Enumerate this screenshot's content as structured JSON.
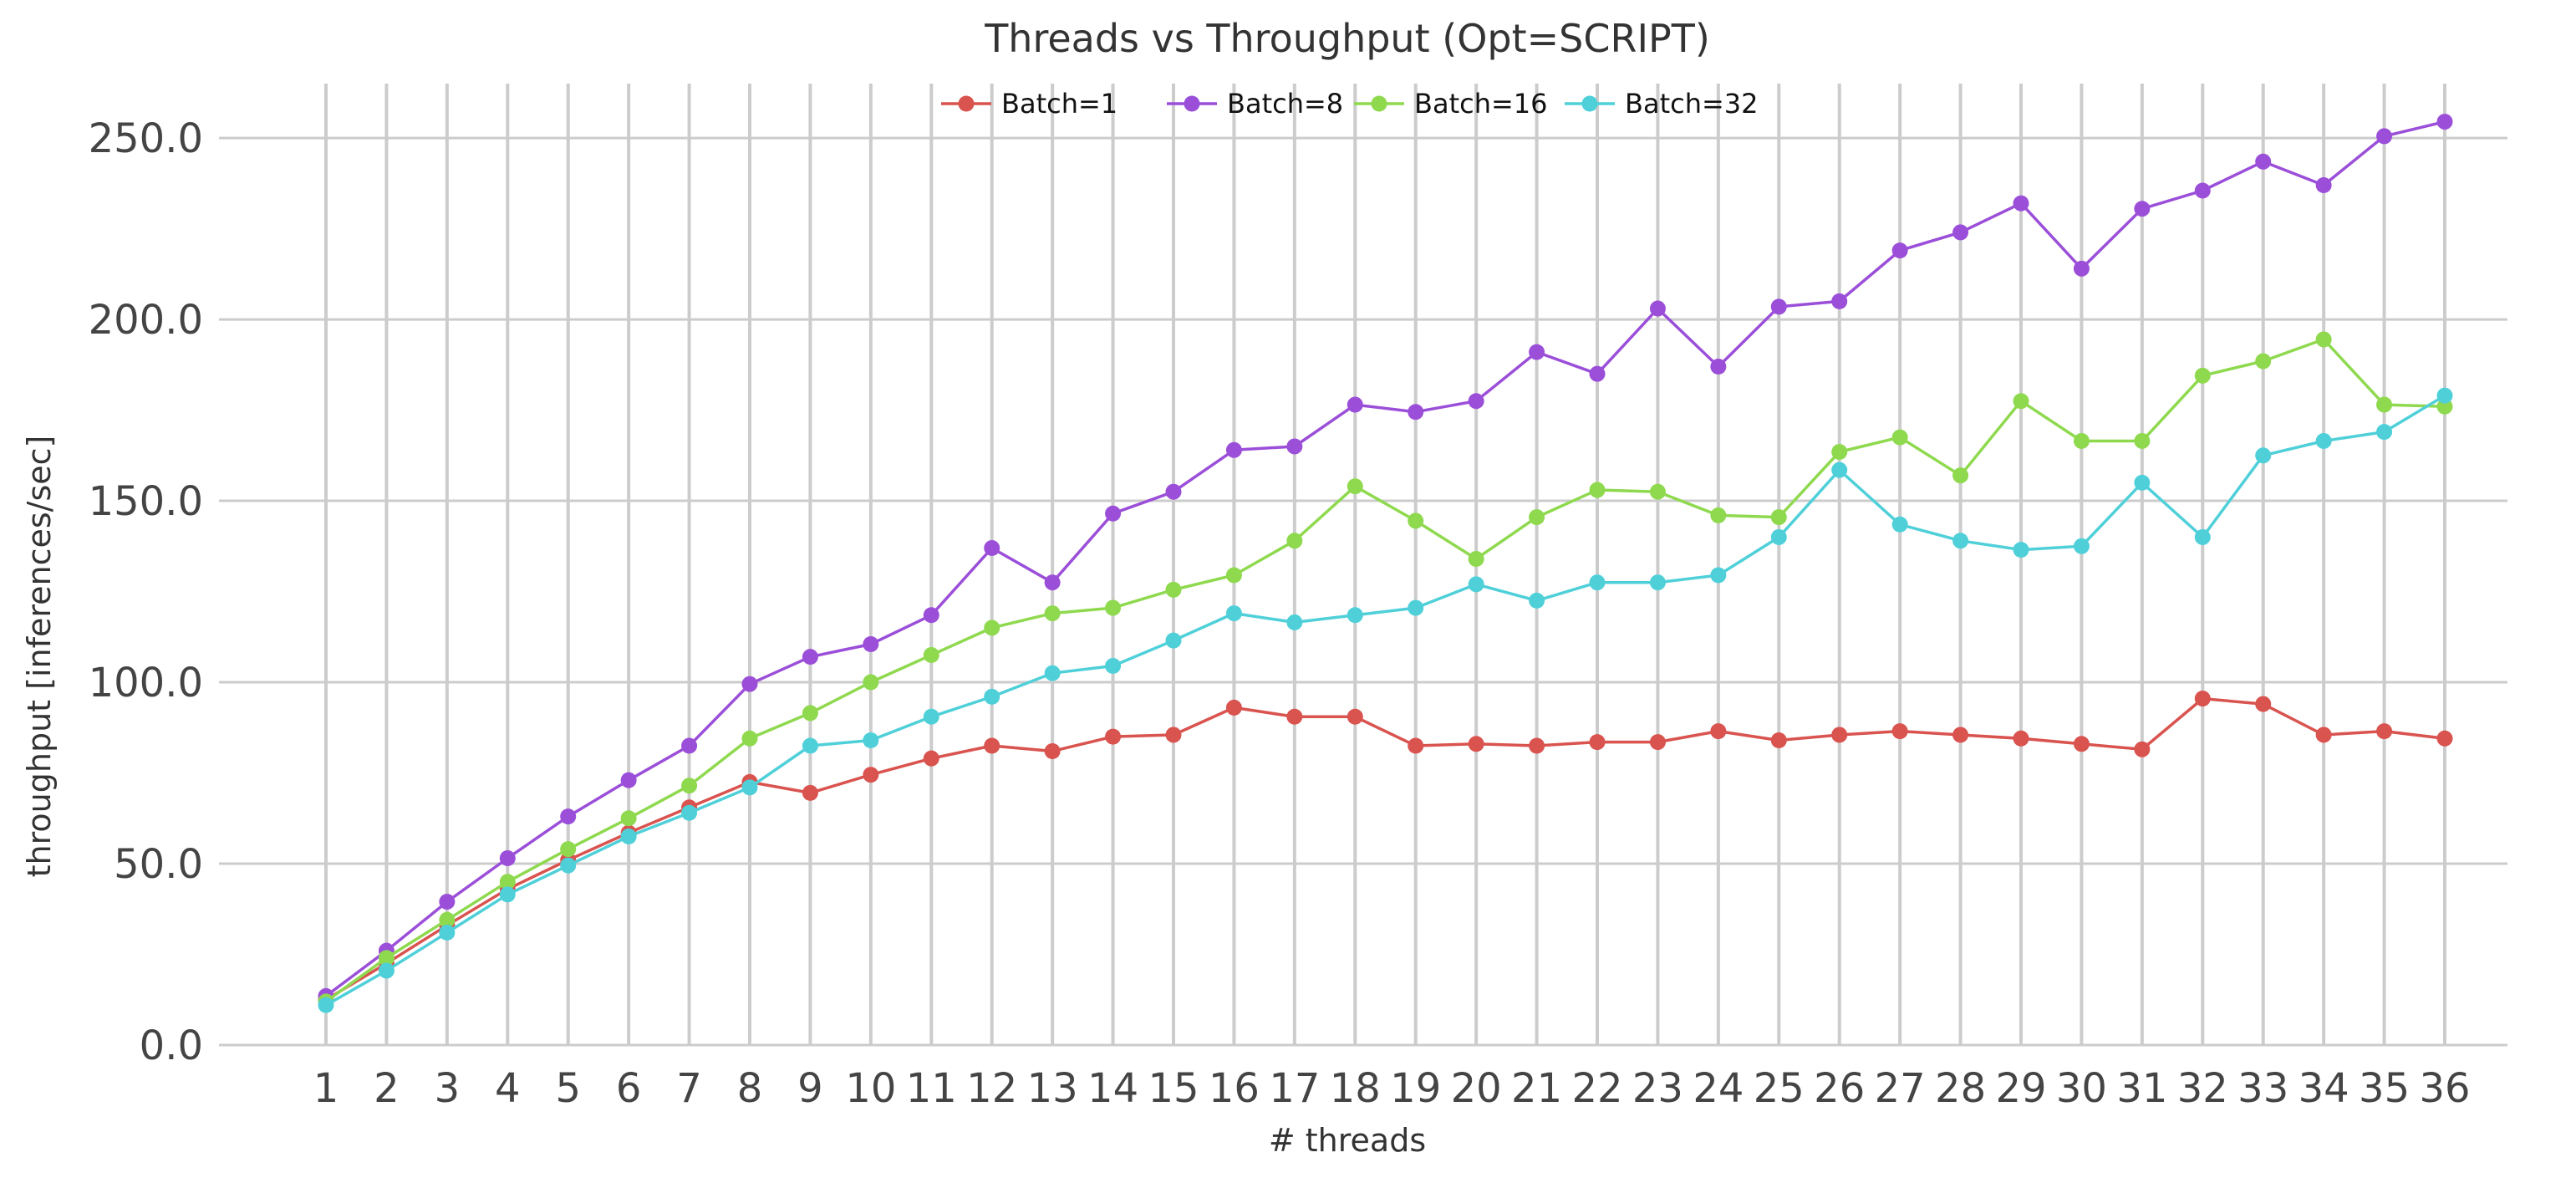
{
  "chart_data": {
    "type": "line",
    "title": "Threads vs Throughput (Opt=SCRIPT)",
    "xlabel": "# threads",
    "ylabel": "throughput [inferences/sec]",
    "x": [
      1,
      2,
      3,
      4,
      5,
      6,
      7,
      8,
      9,
      10,
      11,
      12,
      13,
      14,
      15,
      16,
      17,
      18,
      19,
      20,
      21,
      22,
      23,
      24,
      25,
      26,
      27,
      28,
      29,
      30,
      31,
      32,
      33,
      34,
      35,
      36
    ],
    "x_tick_labels": [
      "1",
      "2",
      "3",
      "4",
      "5",
      "6",
      "7",
      "8",
      "9",
      "10",
      "11",
      "12",
      "13",
      "14",
      "15",
      "16",
      "17",
      "18",
      "19",
      "20",
      "21",
      "22",
      "23",
      "24",
      "25",
      "26",
      "27",
      "28",
      "29",
      "30",
      "31",
      "32",
      "33",
      "34",
      "35",
      "36"
    ],
    "y_ticks": [
      0,
      50,
      100,
      150,
      200,
      250
    ],
    "y_tick_labels": [
      "0.0",
      "50.0",
      "100.0",
      "150.0",
      "200.0",
      "250.0"
    ],
    "ylim": [
      0,
      265
    ],
    "grid": true,
    "legend_position": "top-center",
    "series": [
      {
        "name": "Batch=1",
        "color": "#d9534f",
        "values": [
          12.5,
          22.5,
          33.0,
          43.0,
          51.0,
          58.5,
          65.5,
          72.5,
          69.5,
          74.5,
          79.0,
          82.5,
          81.0,
          85.0,
          85.5,
          93.0,
          90.5,
          90.5,
          82.5,
          83.0,
          82.5,
          83.5,
          83.5,
          86.5,
          84.0,
          85.5,
          86.5,
          85.5,
          84.5,
          83.0,
          81.5,
          95.5,
          94.0,
          85.5,
          86.5,
          84.5
        ]
      },
      {
        "name": "Batch=8",
        "color": "#9b4fd9",
        "values": [
          13.5,
          26.0,
          39.5,
          51.5,
          63.0,
          73.0,
          82.5,
          99.5,
          107.0,
          110.5,
          118.5,
          137.0,
          127.5,
          146.5,
          152.5,
          164.0,
          165.0,
          176.5,
          174.5,
          177.5,
          191.0,
          185.0,
          203.0,
          187.0,
          203.5,
          205.0,
          219.0,
          224.0,
          232.0,
          214.0,
          230.5,
          235.5,
          243.5,
          237.0,
          250.5,
          254.5
        ]
      },
      {
        "name": "Batch=16",
        "color": "#8fd94f",
        "values": [
          12.0,
          24.0,
          34.5,
          45.0,
          54.0,
          62.5,
          71.5,
          84.5,
          91.5,
          100.0,
          107.5,
          115.0,
          119.0,
          120.5,
          125.5,
          129.5,
          139.0,
          154.0,
          144.5,
          134.0,
          145.5,
          153.0,
          152.5,
          146.0,
          145.5,
          163.5,
          167.5,
          157.0,
          177.5,
          166.5,
          166.5,
          184.5,
          188.5,
          194.5,
          176.5,
          176.0
        ]
      },
      {
        "name": "Batch=32",
        "color": "#4fd0d9",
        "values": [
          11.0,
          20.5,
          31.0,
          41.5,
          49.5,
          57.5,
          64.0,
          71.0,
          82.5,
          84.0,
          90.5,
          96.0,
          102.5,
          104.5,
          111.5,
          119.0,
          116.5,
          118.5,
          120.5,
          127.0,
          122.5,
          127.5,
          127.5,
          129.5,
          140.0,
          158.5,
          143.5,
          139.0,
          136.5,
          137.5,
          155.0,
          140.0,
          162.5,
          166.5,
          169.0,
          179.0
        ]
      }
    ]
  }
}
